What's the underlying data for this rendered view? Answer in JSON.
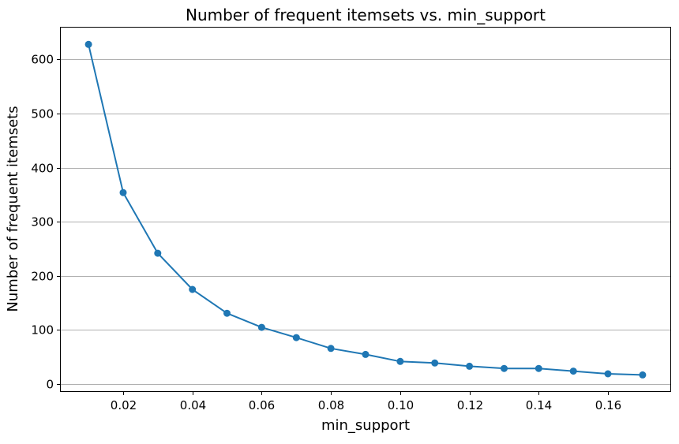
{
  "chart_data": {
    "type": "line",
    "title": "Number of frequent itemsets vs. min_support",
    "xlabel": "min_support",
    "ylabel": "Number of frequent itemsets",
    "x": [
      0.01,
      0.02,
      0.03,
      0.04,
      0.05,
      0.06,
      0.07,
      0.08,
      0.09,
      0.1,
      0.11,
      0.12,
      0.13,
      0.14,
      0.15,
      0.16,
      0.17
    ],
    "series": [
      {
        "values": [
          628,
          354,
          242,
          175,
          131,
          105,
          86,
          66,
          55,
          42,
          39,
          33,
          29,
          29,
          24,
          19,
          17
        ],
        "color": "#1f77b4",
        "marker": "circle"
      }
    ],
    "xlim": [
      0.002,
      0.178
    ],
    "ylim": [
      -13,
      659
    ],
    "x_ticks": [
      0.02,
      0.04,
      0.06,
      0.08,
      0.1,
      0.12,
      0.14,
      0.16
    ],
    "x_tick_labels": [
      "0.02",
      "0.04",
      "0.06",
      "0.08",
      "0.10",
      "0.12",
      "0.14",
      "0.16"
    ],
    "y_ticks": [
      0,
      100,
      200,
      300,
      400,
      500,
      600
    ],
    "y_tick_labels": [
      "0",
      "100",
      "200",
      "300",
      "400",
      "500",
      "600"
    ],
    "grid": "y-axis only",
    "legend": "none"
  }
}
